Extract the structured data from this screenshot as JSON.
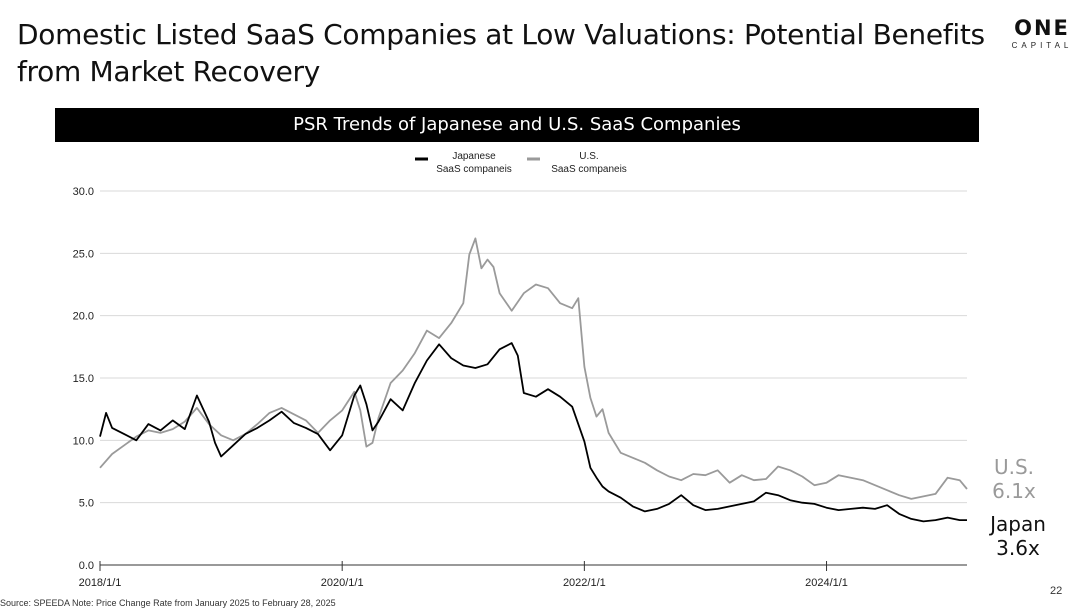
{
  "header": {
    "title_line1": "Domestic Listed SaaS Companies at Low Valuations: Potential Benefits",
    "title_line2": "from Market Recovery",
    "logo_main": "ONE",
    "logo_sub": "CAPITAL"
  },
  "end_labels": {
    "us_name": "U.S.",
    "us_value": "6.1x",
    "jp_name": "Japan",
    "jp_value": "3.6x"
  },
  "footer": {
    "source": "Source: SPEEDA  Note: Price Change Rate from January 2025 to February 28, 2025",
    "page_number": "22"
  },
  "colors": {
    "japan": "#000000",
    "us": "#9a9a9a",
    "grid": "#d9d9d9",
    "banner": "#000000"
  },
  "chart_data": {
    "type": "line",
    "title": "PSR Trends of Japanese and U.S. SaaS Companies",
    "xlabel": "",
    "ylabel": "",
    "ylim": [
      0,
      30
    ],
    "yticks": [
      0,
      5,
      10,
      15,
      20,
      25,
      30
    ],
    "ytick_labels": [
      "0.0",
      "5.0",
      "10.0",
      "15.0",
      "20.0",
      "25.0",
      "30.0"
    ],
    "xlim": [
      2018.0,
      2025.16
    ],
    "xticks": [
      2018,
      2020,
      2022,
      2024
    ],
    "xtick_labels": [
      "2018/1/1",
      "2020/1/1",
      "2022/1/1",
      "2024/1/1"
    ],
    "grid": true,
    "legend_position": "top-center",
    "series": [
      {
        "name": "Japanese\nSaaS companeis",
        "legend_line1": "Japanese",
        "legend_line2": "SaaS companeis",
        "color": "#000000",
        "x": [
          2018.0,
          2018.05,
          2018.1,
          2018.2,
          2018.3,
          2018.4,
          2018.5,
          2018.6,
          2018.7,
          2018.8,
          2018.9,
          2018.95,
          2019.0,
          2019.1,
          2019.2,
          2019.3,
          2019.4,
          2019.5,
          2019.6,
          2019.7,
          2019.8,
          2019.9,
          2020.0,
          2020.1,
          2020.15,
          2020.2,
          2020.25,
          2020.3,
          2020.4,
          2020.5,
          2020.6,
          2020.7,
          2020.8,
          2020.9,
          2021.0,
          2021.1,
          2021.2,
          2021.3,
          2021.4,
          2021.45,
          2021.5,
          2021.6,
          2021.7,
          2021.8,
          2021.9,
          2022.0,
          2022.05,
          2022.1,
          2022.15,
          2022.2,
          2022.3,
          2022.4,
          2022.5,
          2022.6,
          2022.7,
          2022.8,
          2022.9,
          2023.0,
          2023.1,
          2023.2,
          2023.3,
          2023.4,
          2023.5,
          2023.6,
          2023.7,
          2023.8,
          2023.9,
          2024.0,
          2024.1,
          2024.2,
          2024.3,
          2024.4,
          2024.5,
          2024.6,
          2024.7,
          2024.8,
          2024.9,
          2025.0,
          2025.1,
          2025.16
        ],
        "values": [
          10.3,
          12.2,
          11.0,
          10.5,
          10.0,
          11.3,
          10.8,
          11.6,
          10.9,
          13.6,
          11.5,
          9.8,
          8.7,
          9.6,
          10.5,
          11.0,
          11.6,
          12.3,
          11.4,
          11.0,
          10.5,
          9.2,
          10.4,
          13.6,
          14.4,
          12.9,
          10.8,
          11.5,
          13.3,
          12.4,
          14.6,
          16.4,
          17.7,
          16.6,
          16.0,
          15.8,
          16.1,
          17.3,
          17.8,
          16.8,
          13.8,
          13.5,
          14.1,
          13.5,
          12.7,
          9.9,
          7.8,
          7.0,
          6.3,
          5.9,
          5.4,
          4.7,
          4.3,
          4.5,
          4.9,
          5.6,
          4.8,
          4.4,
          4.5,
          4.7,
          4.9,
          5.1,
          5.8,
          5.6,
          5.2,
          5.0,
          4.9,
          4.6,
          4.4,
          4.5,
          4.6,
          4.5,
          4.8,
          4.1,
          3.7,
          3.5,
          3.6,
          3.8,
          3.6,
          3.6
        ]
      },
      {
        "name": "U.S.\nSaaS companeis",
        "legend_line1": "U.S.",
        "legend_line2": "SaaS companeis",
        "color": "#9a9a9a",
        "x": [
          2018.0,
          2018.1,
          2018.2,
          2018.3,
          2018.4,
          2018.5,
          2018.6,
          2018.7,
          2018.8,
          2018.9,
          2019.0,
          2019.1,
          2019.2,
          2019.3,
          2019.4,
          2019.5,
          2019.6,
          2019.7,
          2019.8,
          2019.9,
          2020.0,
          2020.1,
          2020.15,
          2020.2,
          2020.25,
          2020.3,
          2020.4,
          2020.5,
          2020.6,
          2020.7,
          2020.8,
          2020.9,
          2021.0,
          2021.05,
          2021.1,
          2021.15,
          2021.2,
          2021.25,
          2021.3,
          2021.4,
          2021.5,
          2021.6,
          2021.7,
          2021.8,
          2021.9,
          2021.95,
          2022.0,
          2022.05,
          2022.1,
          2022.15,
          2022.2,
          2022.3,
          2022.4,
          2022.5,
          2022.6,
          2022.7,
          2022.8,
          2022.9,
          2023.0,
          2023.1,
          2023.2,
          2023.3,
          2023.4,
          2023.5,
          2023.6,
          2023.7,
          2023.8,
          2023.9,
          2024.0,
          2024.1,
          2024.2,
          2024.3,
          2024.4,
          2024.5,
          2024.6,
          2024.7,
          2024.8,
          2024.9,
          2025.0,
          2025.1,
          2025.16
        ],
        "values": [
          7.8,
          8.9,
          9.6,
          10.3,
          10.8,
          10.6,
          10.9,
          11.5,
          12.6,
          11.3,
          10.4,
          10.0,
          10.5,
          11.3,
          12.2,
          12.6,
          12.1,
          11.6,
          10.6,
          11.6,
          12.4,
          13.9,
          12.4,
          9.5,
          9.8,
          11.8,
          14.6,
          15.6,
          17.0,
          18.8,
          18.2,
          19.4,
          21.0,
          24.9,
          26.2,
          23.8,
          24.5,
          23.9,
          21.8,
          20.4,
          21.8,
          22.5,
          22.2,
          21.0,
          20.6,
          21.4,
          15.9,
          13.4,
          11.9,
          12.5,
          10.6,
          9.0,
          8.6,
          8.2,
          7.6,
          7.1,
          6.8,
          7.3,
          7.2,
          7.6,
          6.6,
          7.2,
          6.8,
          6.9,
          7.9,
          7.6,
          7.1,
          6.4,
          6.6,
          7.2,
          7.0,
          6.8,
          6.4,
          6.0,
          5.6,
          5.3,
          5.5,
          5.7,
          7.0,
          6.8,
          6.1
        ]
      }
    ]
  }
}
